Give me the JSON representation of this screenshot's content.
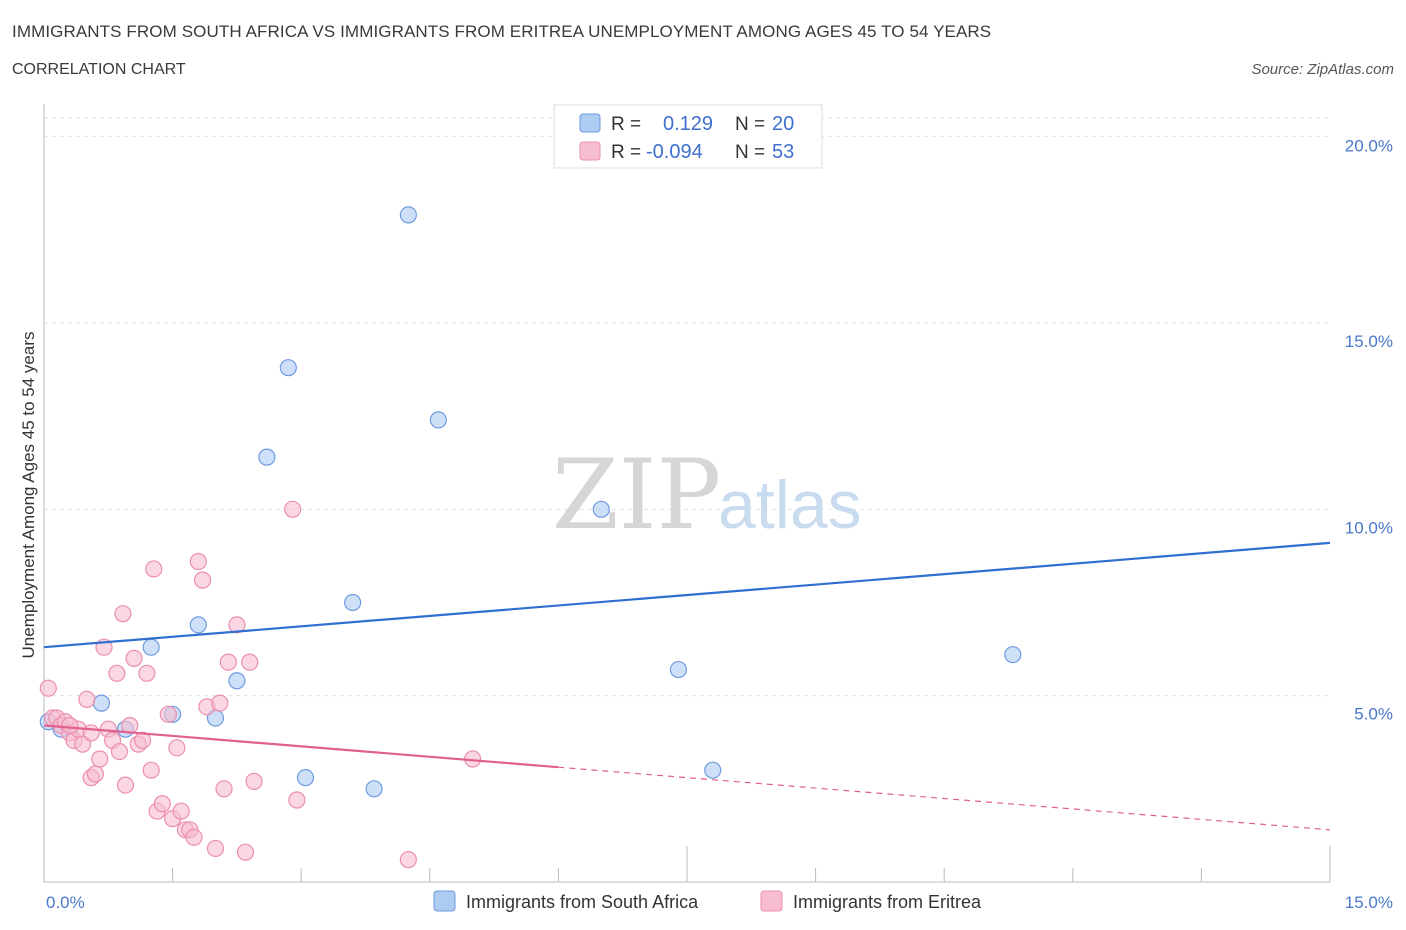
{
  "header": {
    "title": "IMMIGRANTS FROM SOUTH AFRICA VS IMMIGRANTS FROM ERITREA UNEMPLOYMENT AMONG AGES 45 TO 54 YEARS",
    "subtitle": "CORRELATION CHART",
    "source": "Source: ZipAtlas.com"
  },
  "watermark": {
    "zip": "ZIP",
    "atlas": "atlas"
  },
  "legend": {
    "rows": [
      {
        "r_label": "R =",
        "r_value": "0.129",
        "n_label": "N =",
        "n_value": "20"
      },
      {
        "r_label": "R =",
        "r_value": "-0.094",
        "n_label": "N =",
        "n_value": "53"
      }
    ]
  },
  "colors": {
    "south_africa_fill": "#aecbf2",
    "south_africa_stroke": "#6f9be0",
    "south_africa_line": "#2f6fd0",
    "eritrea_fill": "#f7bdd0",
    "eritrea_stroke": "#ec8fae",
    "eritrea_line": "#e0608f",
    "tick_label": "#4a78c9",
    "grid": "#e2e2e2"
  },
  "chart_data": {
    "type": "scatter",
    "title": "IMMIGRANTS FROM SOUTH AFRICA VS IMMIGRANTS FROM ERITREA UNEMPLOYMENT AMONG AGES 45 TO 54 YEARS",
    "xlabel": "",
    "ylabel": "Unemployment Among Ages 45 to 54 years",
    "xlim": [
      0,
      15
    ],
    "ylim": [
      0,
      20
    ],
    "x_tick_labels": [
      "0.0%",
      "15.0%"
    ],
    "y_tick_labels": [
      "5.0%",
      "10.0%",
      "15.0%",
      "20.0%"
    ],
    "y_tick_values": [
      5,
      10,
      15,
      20
    ],
    "grid": true,
    "legend_position": "top-center",
    "series": [
      {
        "name": "Immigrants from South Africa",
        "r": 0.129,
        "n": 20,
        "trend": {
          "x": [
            0,
            15
          ],
          "y": [
            6.3,
            9.1
          ],
          "dashed_from": null
        },
        "points": [
          {
            "x": 0.05,
            "y": 4.3
          },
          {
            "x": 0.2,
            "y": 4.1
          },
          {
            "x": 0.67,
            "y": 4.8
          },
          {
            "x": 0.95,
            "y": 4.1
          },
          {
            "x": 1.25,
            "y": 6.3
          },
          {
            "x": 1.5,
            "y": 4.5
          },
          {
            "x": 1.8,
            "y": 6.9
          },
          {
            "x": 2.0,
            "y": 4.4
          },
          {
            "x": 2.25,
            "y": 5.4
          },
          {
            "x": 2.6,
            "y": 11.4
          },
          {
            "x": 2.85,
            "y": 13.8
          },
          {
            "x": 3.05,
            "y": 2.8
          },
          {
            "x": 3.6,
            "y": 7.5
          },
          {
            "x": 3.85,
            "y": 2.5
          },
          {
            "x": 4.25,
            "y": 17.9
          },
          {
            "x": 4.6,
            "y": 12.4
          },
          {
            "x": 6.5,
            "y": 10.0
          },
          {
            "x": 7.4,
            "y": 5.7
          },
          {
            "x": 7.8,
            "y": 3.0
          },
          {
            "x": 11.3,
            "y": 6.1
          }
        ]
      },
      {
        "name": "Immigrants from Eritrea",
        "r": -0.094,
        "n": 53,
        "trend": {
          "x": [
            0,
            15
          ],
          "y": [
            4.2,
            1.4
          ],
          "solid_to": 6.0
        },
        "points": [
          {
            "x": 0.05,
            "y": 5.2
          },
          {
            "x": 0.1,
            "y": 4.4
          },
          {
            "x": 0.15,
            "y": 4.4
          },
          {
            "x": 0.2,
            "y": 4.2
          },
          {
            "x": 0.25,
            "y": 4.3
          },
          {
            "x": 0.3,
            "y": 4.0
          },
          {
            "x": 0.35,
            "y": 3.8
          },
          {
            "x": 0.4,
            "y": 4.1
          },
          {
            "x": 0.45,
            "y": 3.7
          },
          {
            "x": 0.5,
            "y": 4.9
          },
          {
            "x": 0.55,
            "y": 2.8
          },
          {
            "x": 0.6,
            "y": 2.9
          },
          {
            "x": 0.65,
            "y": 3.3
          },
          {
            "x": 0.7,
            "y": 6.3
          },
          {
            "x": 0.75,
            "y": 4.1
          },
          {
            "x": 0.8,
            "y": 3.8
          },
          {
            "x": 0.85,
            "y": 5.6
          },
          {
            "x": 0.88,
            "y": 3.5
          },
          {
            "x": 0.92,
            "y": 7.2
          },
          {
            "x": 0.95,
            "y": 2.6
          },
          {
            "x": 1.0,
            "y": 4.2
          },
          {
            "x": 1.05,
            "y": 6.0
          },
          {
            "x": 1.1,
            "y": 3.7
          },
          {
            "x": 1.15,
            "y": 3.8
          },
          {
            "x": 1.2,
            "y": 5.6
          },
          {
            "x": 1.25,
            "y": 3.0
          },
          {
            "x": 1.28,
            "y": 8.4
          },
          {
            "x": 1.32,
            "y": 1.9
          },
          {
            "x": 1.38,
            "y": 2.1
          },
          {
            "x": 1.45,
            "y": 4.5
          },
          {
            "x": 1.5,
            "y": 1.7
          },
          {
            "x": 1.55,
            "y": 3.6
          },
          {
            "x": 1.6,
            "y": 1.9
          },
          {
            "x": 1.65,
            "y": 1.4
          },
          {
            "x": 1.7,
            "y": 1.4
          },
          {
            "x": 1.75,
            "y": 1.2
          },
          {
            "x": 1.8,
            "y": 8.6
          },
          {
            "x": 1.85,
            "y": 8.1
          },
          {
            "x": 1.9,
            "y": 4.7
          },
          {
            "x": 2.0,
            "y": 0.9
          },
          {
            "x": 2.05,
            "y": 4.8
          },
          {
            "x": 2.1,
            "y": 2.5
          },
          {
            "x": 2.15,
            "y": 5.9
          },
          {
            "x": 2.25,
            "y": 6.9
          },
          {
            "x": 2.35,
            "y": 0.8
          },
          {
            "x": 2.4,
            "y": 5.9
          },
          {
            "x": 2.45,
            "y": 2.7
          },
          {
            "x": 2.9,
            "y": 10.0
          },
          {
            "x": 2.95,
            "y": 2.2
          },
          {
            "x": 4.25,
            "y": 0.6
          },
          {
            "x": 5.0,
            "y": 3.3
          },
          {
            "x": 0.55,
            "y": 4.0
          },
          {
            "x": 0.3,
            "y": 4.2
          }
        ]
      }
    ]
  },
  "bottom_legend": {
    "items": [
      {
        "label": "Immigrants from South Africa"
      },
      {
        "label": "Immigrants from Eritrea"
      }
    ]
  }
}
